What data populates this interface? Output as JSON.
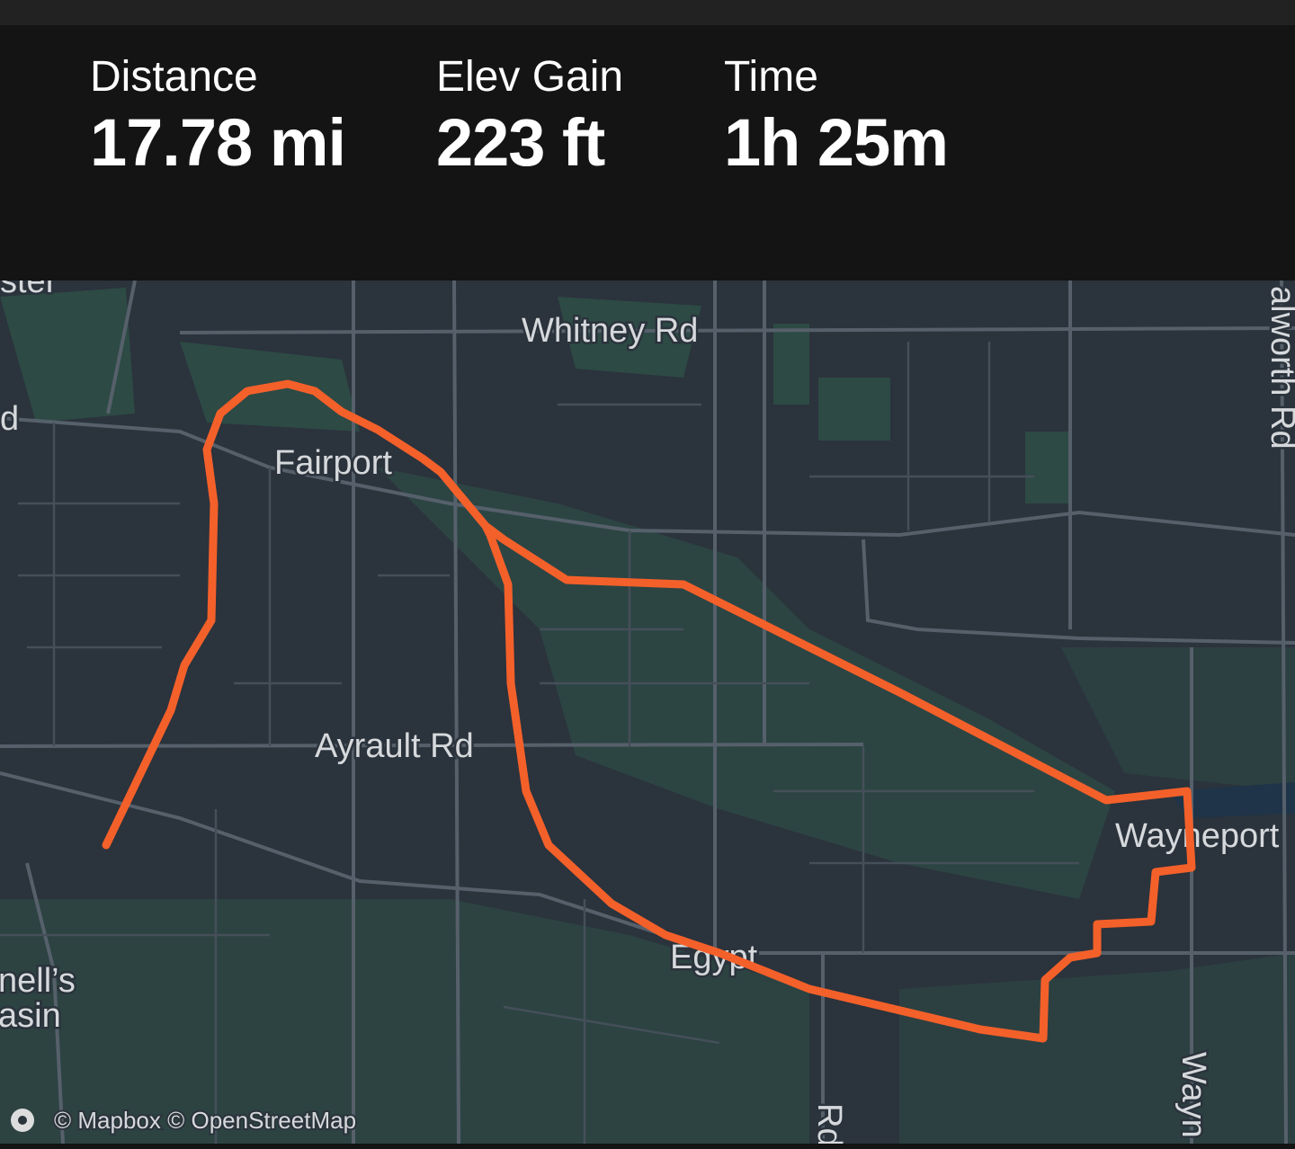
{
  "stats": [
    {
      "label": "Distance",
      "value": "17.78 mi"
    },
    {
      "label": "Elev Gain",
      "value": "223 ft"
    },
    {
      "label": "Time",
      "value": "1h 25m"
    }
  ],
  "map": {
    "labels": [
      "ster",
      "Whitney Rd",
      "d",
      "Fairport",
      "Ayrault Rd",
      "Wayneport",
      "Egypt",
      "nell’s",
      "asin",
      "Rd",
      "Wayn",
      "alworth Rd"
    ],
    "attribution": "© Mapbox © OpenStreetMap"
  }
}
